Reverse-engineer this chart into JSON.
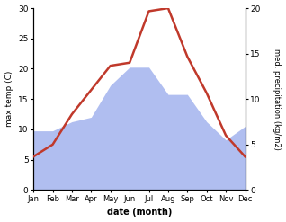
{
  "months": [
    "Jan",
    "Feb",
    "Mar",
    "Apr",
    "May",
    "Jun",
    "Jul",
    "Aug",
    "Sep",
    "Oct",
    "Nov",
    "Dec"
  ],
  "x": [
    0,
    1,
    2,
    3,
    4,
    5,
    6,
    7,
    8,
    9,
    10,
    11
  ],
  "temp": [
    5.5,
    7.5,
    12.5,
    16.5,
    20.5,
    21.0,
    29.5,
    30.0,
    22.0,
    16.0,
    9.0,
    5.5
  ],
  "precip": [
    6.5,
    6.5,
    7.5,
    8.0,
    11.5,
    13.5,
    13.5,
    10.5,
    10.5,
    7.5,
    5.5,
    7.0
  ],
  "temp_color": "#c0392b",
  "precip_color": "#b0bef0",
  "temp_ylim": [
    0,
    30
  ],
  "precip_ylim": [
    0,
    20
  ],
  "temp_yticks": [
    0,
    5,
    10,
    15,
    20,
    25,
    30
  ],
  "precip_yticks": [
    0,
    5,
    10,
    15,
    20
  ],
  "xlabel": "date (month)",
  "ylabel_left": "max temp (C)",
  "ylabel_right": "med. precipitation (kg/m2)",
  "bg_color": "#ffffff"
}
